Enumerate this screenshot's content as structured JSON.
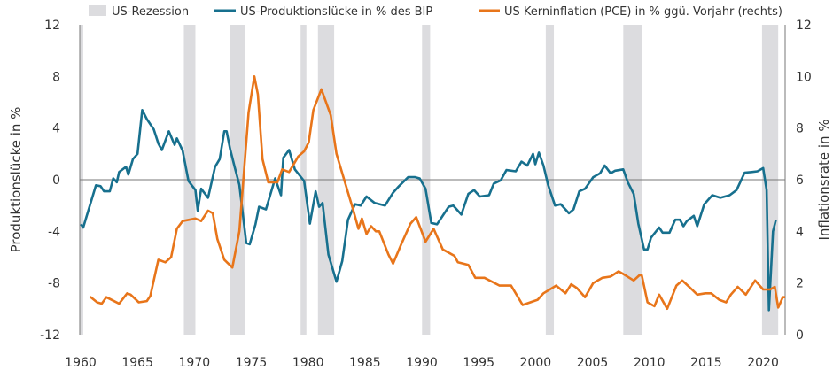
{
  "chart_data": {
    "type": "line",
    "title": "",
    "legend": [
      {
        "name": "US-Rezession",
        "kind": "band",
        "color": "#dcdcdf"
      },
      {
        "name": "US-Produktionslücke in % des BIP",
        "kind": "line",
        "color": "#17708e"
      },
      {
        "name": "US Kerninflation (PCE) in % ggü. Vorjahr (rechts)",
        "kind": "line",
        "color": "#e8751a"
      }
    ],
    "legend_position": "top",
    "xlabel": "",
    "ylabel_left": "Produktionslücke in %",
    "ylabel_right": "Inflationsrate in %",
    "xlim": [
      1960.9,
      2021.9
    ],
    "ylim_left": [
      -12,
      12
    ],
    "ylim_right": [
      0,
      12
    ],
    "x_ticks": [
      "1960",
      "1965",
      "1970",
      "1975",
      "1980",
      "1985",
      "1990",
      "1995",
      "2000",
      "2005",
      "2010",
      "2015",
      "2020"
    ],
    "y_ticks_left": [
      "12",
      "8",
      "4",
      "0",
      "-4",
      "-8",
      "-12"
    ],
    "y_ticks_right": [
      "12",
      "10",
      "8",
      "6",
      "4",
      "2",
      "0"
    ],
    "recessions": [
      [
        1960.9,
        1961.2
      ],
      [
        1969.9,
        1970.9
      ],
      [
        1973.9,
        1975.2
      ],
      [
        1980.0,
        1980.5
      ],
      [
        1981.5,
        1982.9
      ],
      [
        1990.5,
        1991.2
      ],
      [
        2001.2,
        2001.9
      ],
      [
        2007.9,
        2009.5
      ],
      [
        2019.9,
        2021.3
      ]
    ],
    "series": [
      {
        "name": "US-Produktionslücke in % des BIP",
        "axis": "left",
        "color": "#17708e",
        "points": [
          [
            1961.0,
            -3.45
          ],
          [
            1961.2,
            -3.7
          ],
          [
            1962.3,
            -0.43
          ],
          [
            1962.7,
            -0.5
          ],
          [
            1963.0,
            -0.9
          ],
          [
            1963.5,
            -0.9
          ],
          [
            1963.8,
            0.1
          ],
          [
            1964.1,
            -0.2
          ],
          [
            1964.3,
            0.6
          ],
          [
            1964.9,
            1.0
          ],
          [
            1965.1,
            0.4
          ],
          [
            1965.5,
            1.6
          ],
          [
            1965.9,
            2.0
          ],
          [
            1966.3,
            5.4
          ],
          [
            1966.7,
            4.7
          ],
          [
            1967.3,
            3.9
          ],
          [
            1967.7,
            2.8
          ],
          [
            1968.0,
            2.3
          ],
          [
            1968.6,
            3.75
          ],
          [
            1969.1,
            2.7
          ],
          [
            1969.3,
            3.2
          ],
          [
            1969.8,
            2.25
          ],
          [
            1970.3,
            -0.1
          ],
          [
            1970.9,
            -0.8
          ],
          [
            1971.1,
            -2.4
          ],
          [
            1971.4,
            -0.7
          ],
          [
            1972.0,
            -1.4
          ],
          [
            1972.6,
            1.0
          ],
          [
            1973.0,
            1.6
          ],
          [
            1973.4,
            3.75
          ],
          [
            1973.6,
            3.75
          ],
          [
            1973.9,
            2.4
          ],
          [
            1974.3,
            0.95
          ],
          [
            1974.7,
            -0.4
          ],
          [
            1975.3,
            -4.9
          ],
          [
            1975.6,
            -5.0
          ],
          [
            1976.1,
            -3.45
          ],
          [
            1976.4,
            -2.1
          ],
          [
            1977.0,
            -2.3
          ],
          [
            1977.8,
            0.1
          ],
          [
            1978.3,
            -1.2
          ],
          [
            1978.5,
            1.7
          ],
          [
            1979.0,
            2.3
          ],
          [
            1979.5,
            0.8
          ],
          [
            1980.3,
            -0.1
          ],
          [
            1980.8,
            -3.4
          ],
          [
            1981.3,
            -0.9
          ],
          [
            1981.6,
            -2.1
          ],
          [
            1981.9,
            -1.8
          ],
          [
            1982.4,
            -5.8
          ],
          [
            1983.1,
            -7.9
          ],
          [
            1983.6,
            -6.3
          ],
          [
            1984.1,
            -3.1
          ],
          [
            1984.7,
            -1.9
          ],
          [
            1985.2,
            -2.0
          ],
          [
            1985.7,
            -1.3
          ],
          [
            1986.4,
            -1.8
          ],
          [
            1987.3,
            -2.0
          ],
          [
            1988.0,
            -1.0
          ],
          [
            1988.5,
            -0.5
          ],
          [
            1989.3,
            0.2
          ],
          [
            1989.9,
            0.2
          ],
          [
            1990.3,
            0.1
          ],
          [
            1990.8,
            -0.7
          ],
          [
            1991.3,
            -3.35
          ],
          [
            1991.8,
            -3.45
          ],
          [
            1992.8,
            -2.1
          ],
          [
            1993.2,
            -2.0
          ],
          [
            1993.9,
            -2.7
          ],
          [
            1994.5,
            -1.1
          ],
          [
            1995.0,
            -0.8
          ],
          [
            1995.5,
            -1.3
          ],
          [
            1996.3,
            -1.2
          ],
          [
            1996.7,
            -0.3
          ],
          [
            1997.3,
            -0.05
          ],
          [
            1997.8,
            0.75
          ],
          [
            1998.6,
            0.65
          ],
          [
            1999.1,
            1.4
          ],
          [
            1999.6,
            1.1
          ],
          [
            2000.1,
            2.0
          ],
          [
            2000.3,
            1.2
          ],
          [
            2000.6,
            2.1
          ],
          [
            2001.0,
            1.1
          ],
          [
            2001.4,
            -0.4
          ],
          [
            2002.0,
            -2.0
          ],
          [
            2002.5,
            -1.9
          ],
          [
            2003.2,
            -2.6
          ],
          [
            2003.6,
            -2.3
          ],
          [
            2004.1,
            -0.9
          ],
          [
            2004.6,
            -0.7
          ],
          [
            2005.3,
            0.2
          ],
          [
            2005.9,
            0.5
          ],
          [
            2006.3,
            1.1
          ],
          [
            2006.8,
            0.5
          ],
          [
            2007.2,
            0.7
          ],
          [
            2007.9,
            0.8
          ],
          [
            2008.3,
            -0.2
          ],
          [
            2008.8,
            -1.1
          ],
          [
            2009.2,
            -3.4
          ],
          [
            2009.7,
            -5.4
          ],
          [
            2010.0,
            -5.4
          ],
          [
            2010.3,
            -4.5
          ],
          [
            2011.0,
            -3.7
          ],
          [
            2011.3,
            -4.1
          ],
          [
            2011.9,
            -4.1
          ],
          [
            2012.4,
            -3.1
          ],
          [
            2012.8,
            -3.1
          ],
          [
            2013.1,
            -3.6
          ],
          [
            2013.4,
            -3.2
          ],
          [
            2014.0,
            -2.8
          ],
          [
            2014.3,
            -3.6
          ],
          [
            2014.9,
            -1.9
          ],
          [
            2015.6,
            -1.2
          ],
          [
            2016.3,
            -1.4
          ],
          [
            2017.1,
            -1.2
          ],
          [
            2017.7,
            -0.8
          ],
          [
            2018.4,
            0.55
          ],
          [
            2019.0,
            0.6
          ],
          [
            2019.5,
            0.65
          ],
          [
            2020.0,
            0.9
          ],
          [
            2020.3,
            -0.8
          ],
          [
            2020.5,
            -10.1
          ],
          [
            2020.85,
            -4.0
          ],
          [
            2021.1,
            -3.1
          ]
        ]
      },
      {
        "name": "US Kerninflation (PCE) in % ggü. Vorjahr (rechts)",
        "axis": "right",
        "color": "#e8751a",
        "points": [
          [
            1961.8,
            1.47
          ],
          [
            1962.4,
            1.25
          ],
          [
            1962.8,
            1.2
          ],
          [
            1963.2,
            1.45
          ],
          [
            1964.3,
            1.2
          ],
          [
            1965.0,
            1.6
          ],
          [
            1965.3,
            1.55
          ],
          [
            1966.0,
            1.25
          ],
          [
            1966.7,
            1.3
          ],
          [
            1967.0,
            1.5
          ],
          [
            1967.7,
            2.9
          ],
          [
            1968.3,
            2.8
          ],
          [
            1968.8,
            3.0
          ],
          [
            1969.3,
            4.1
          ],
          [
            1969.8,
            4.4
          ],
          [
            1970.9,
            4.5
          ],
          [
            1971.4,
            4.4
          ],
          [
            1972.0,
            4.8
          ],
          [
            1972.4,
            4.7
          ],
          [
            1972.8,
            3.7
          ],
          [
            1973.4,
            2.9
          ],
          [
            1974.1,
            2.6
          ],
          [
            1974.7,
            4.0
          ],
          [
            1975.5,
            8.6
          ],
          [
            1976.0,
            10.0
          ],
          [
            1976.3,
            9.3
          ],
          [
            1976.7,
            6.8
          ],
          [
            1977.2,
            5.9
          ],
          [
            1978.0,
            5.9
          ],
          [
            1978.4,
            6.4
          ],
          [
            1979.0,
            6.3
          ],
          [
            1979.8,
            6.9
          ],
          [
            1980.3,
            7.1
          ],
          [
            1980.7,
            7.45
          ],
          [
            1981.1,
            8.7
          ],
          [
            1981.8,
            9.5
          ],
          [
            1982.6,
            8.5
          ],
          [
            1983.1,
            7.0
          ],
          [
            1983.9,
            5.8
          ],
          [
            1984.5,
            4.9
          ],
          [
            1985.0,
            4.1
          ],
          [
            1985.3,
            4.5
          ],
          [
            1985.7,
            3.9
          ],
          [
            1986.1,
            4.2
          ],
          [
            1986.5,
            4.0
          ],
          [
            1986.8,
            4.0
          ],
          [
            1987.6,
            3.1
          ],
          [
            1988.0,
            2.75
          ],
          [
            1988.7,
            3.5
          ],
          [
            1989.5,
            4.3
          ],
          [
            1990.0,
            4.55
          ],
          [
            1990.8,
            3.6
          ],
          [
            1991.5,
            4.1
          ],
          [
            1992.3,
            3.3
          ],
          [
            1993.3,
            3.05
          ],
          [
            1993.6,
            2.8
          ],
          [
            1994.5,
            2.7
          ],
          [
            1995.1,
            2.2
          ],
          [
            1995.9,
            2.2
          ],
          [
            1997.2,
            1.9
          ],
          [
            1998.2,
            1.9
          ],
          [
            1999.2,
            1.15
          ],
          [
            2000.5,
            1.35
          ],
          [
            2001.0,
            1.6
          ],
          [
            2002.1,
            1.9
          ],
          [
            2002.9,
            1.6
          ],
          [
            2003.4,
            1.95
          ],
          [
            2003.9,
            1.8
          ],
          [
            2004.6,
            1.45
          ],
          [
            2005.3,
            2.0
          ],
          [
            2006.1,
            2.2
          ],
          [
            2006.8,
            2.25
          ],
          [
            2007.5,
            2.45
          ],
          [
            2007.9,
            2.35
          ],
          [
            2008.8,
            2.1
          ],
          [
            2009.3,
            2.3
          ],
          [
            2009.5,
            2.3
          ],
          [
            2010.0,
            1.25
          ],
          [
            2010.6,
            1.1
          ],
          [
            2011.0,
            1.55
          ],
          [
            2011.7,
            1.0
          ],
          [
            2012.5,
            1.9
          ],
          [
            2013.0,
            2.1
          ],
          [
            2013.6,
            1.85
          ],
          [
            2014.3,
            1.55
          ],
          [
            2015.0,
            1.6
          ],
          [
            2015.5,
            1.6
          ],
          [
            2016.2,
            1.35
          ],
          [
            2016.8,
            1.25
          ],
          [
            2017.2,
            1.55
          ],
          [
            2017.8,
            1.85
          ],
          [
            2018.5,
            1.55
          ],
          [
            2019.3,
            2.1
          ],
          [
            2020.0,
            1.75
          ],
          [
            2020.6,
            1.75
          ],
          [
            2021.0,
            1.85
          ],
          [
            2021.3,
            1.05
          ],
          [
            2021.7,
            1.45
          ],
          [
            2021.9,
            1.45
          ]
        ]
      }
    ]
  }
}
